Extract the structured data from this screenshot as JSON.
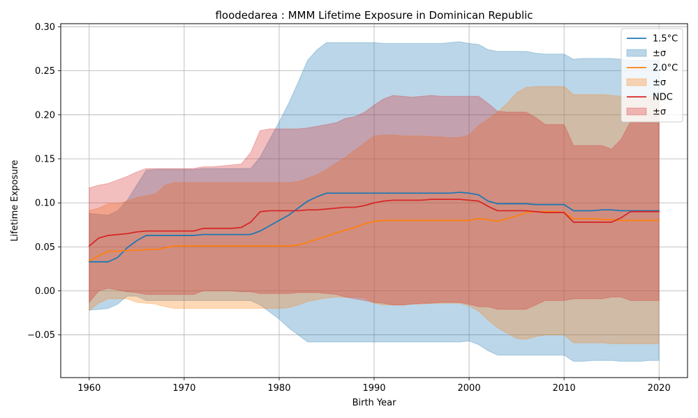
{
  "chart_data": {
    "type": "line",
    "title": "floodedarea : MMM Lifetime Exposure in Dominican Republic",
    "xlabel": "Birth Year",
    "ylabel": "Lifetime Exposure",
    "xlim": [
      1957,
      2023
    ],
    "ylim": [
      -0.0985,
      0.3035
    ],
    "xticks": [
      1960,
      1970,
      1980,
      1990,
      2000,
      2010,
      2020
    ],
    "yticks": [
      -0.05,
      0.0,
      0.05,
      0.1,
      0.15,
      0.2,
      0.25,
      0.3
    ],
    "ytick_labels": [
      "−0.05",
      "0.00",
      "0.05",
      "0.10",
      "0.15",
      "0.20",
      "0.25",
      "0.30"
    ],
    "grid": true,
    "legend_position": "top-right",
    "x": [
      1960,
      1961,
      1962,
      1963,
      1964,
      1965,
      1966,
      1967,
      1968,
      1969,
      1970,
      1971,
      1972,
      1973,
      1974,
      1975,
      1976,
      1977,
      1978,
      1979,
      1980,
      1981,
      1982,
      1983,
      1984,
      1985,
      1986,
      1987,
      1988,
      1989,
      1990,
      1991,
      1992,
      1993,
      1994,
      1995,
      1996,
      1997,
      1998,
      1999,
      2000,
      2001,
      2002,
      2003,
      2004,
      2005,
      2006,
      2007,
      2008,
      2009,
      2010,
      2011,
      2012,
      2013,
      2014,
      2015,
      2016,
      2017,
      2018,
      2019,
      2020
    ],
    "series": [
      {
        "name": "1.5°C",
        "band_label": "±σ",
        "color": "#1f77b4",
        "mean": [
          0.033,
          0.033,
          0.033,
          0.038,
          0.049,
          0.057,
          0.063,
          0.063,
          0.063,
          0.063,
          0.063,
          0.063,
          0.064,
          0.064,
          0.064,
          0.064,
          0.064,
          0.064,
          0.068,
          0.074,
          0.08,
          0.086,
          0.094,
          0.102,
          0.107,
          0.111,
          0.111,
          0.111,
          0.111,
          0.111,
          0.111,
          0.111,
          0.111,
          0.111,
          0.111,
          0.111,
          0.111,
          0.111,
          0.111,
          0.112,
          0.111,
          0.109,
          0.102,
          0.099,
          0.099,
          0.099,
          0.099,
          0.098,
          0.098,
          0.098,
          0.098,
          0.091,
          0.091,
          0.091,
          0.092,
          0.092,
          0.091,
          0.091,
          0.091,
          0.091,
          0.091
        ],
        "upper": [
          0.088,
          0.087,
          0.086,
          0.091,
          0.103,
          0.12,
          0.137,
          0.138,
          0.138,
          0.138,
          0.138,
          0.138,
          0.139,
          0.139,
          0.139,
          0.139,
          0.139,
          0.139,
          0.152,
          0.172,
          0.192,
          0.213,
          0.237,
          0.262,
          0.274,
          0.282,
          0.282,
          0.282,
          0.282,
          0.282,
          0.282,
          0.281,
          0.281,
          0.281,
          0.281,
          0.281,
          0.281,
          0.281,
          0.282,
          0.283,
          0.281,
          0.28,
          0.274,
          0.272,
          0.272,
          0.272,
          0.272,
          0.27,
          0.269,
          0.269,
          0.269,
          0.263,
          0.264,
          0.264,
          0.264,
          0.264,
          0.263,
          0.262,
          0.262,
          0.262,
          0.262
        ],
        "lower": [
          -0.022,
          -0.021,
          -0.02,
          -0.015,
          -0.006,
          -0.006,
          -0.011,
          -0.011,
          -0.011,
          -0.011,
          -0.011,
          -0.011,
          -0.011,
          -0.011,
          -0.011,
          -0.011,
          -0.011,
          -0.011,
          -0.016,
          -0.024,
          -0.032,
          -0.042,
          -0.05,
          -0.058,
          -0.058,
          -0.058,
          -0.058,
          -0.058,
          -0.058,
          -0.058,
          -0.058,
          -0.058,
          -0.058,
          -0.058,
          -0.058,
          -0.058,
          -0.058,
          -0.058,
          -0.058,
          -0.058,
          -0.057,
          -0.061,
          -0.068,
          -0.073,
          -0.073,
          -0.073,
          -0.073,
          -0.073,
          -0.073,
          -0.073,
          -0.073,
          -0.08,
          -0.08,
          -0.079,
          -0.079,
          -0.079,
          -0.08,
          -0.08,
          -0.08,
          -0.079,
          -0.079
        ]
      },
      {
        "name": "2.0°C",
        "band_label": "±σ",
        "color": "#ff7f0e",
        "mean": [
          0.034,
          0.04,
          0.045,
          0.045,
          0.046,
          0.046,
          0.047,
          0.047,
          0.049,
          0.051,
          0.051,
          0.051,
          0.051,
          0.051,
          0.051,
          0.051,
          0.051,
          0.051,
          0.051,
          0.051,
          0.051,
          0.051,
          0.052,
          0.055,
          0.059,
          0.062,
          0.066,
          0.069,
          0.072,
          0.076,
          0.079,
          0.08,
          0.08,
          0.08,
          0.08,
          0.08,
          0.08,
          0.08,
          0.08,
          0.08,
          0.08,
          0.082,
          0.081,
          0.079,
          0.082,
          0.085,
          0.089,
          0.09,
          0.09,
          0.09,
          0.089,
          0.082,
          0.082,
          0.082,
          0.081,
          0.081,
          0.08,
          0.08,
          0.08,
          0.08,
          0.08
        ],
        "upper": [
          0.091,
          0.094,
          0.099,
          0.099,
          0.102,
          0.106,
          0.108,
          0.11,
          0.12,
          0.123,
          0.123,
          0.123,
          0.123,
          0.123,
          0.123,
          0.123,
          0.123,
          0.123,
          0.123,
          0.123,
          0.123,
          0.123,
          0.124,
          0.128,
          0.132,
          0.138,
          0.145,
          0.152,
          0.16,
          0.168,
          0.176,
          0.177,
          0.177,
          0.176,
          0.176,
          0.176,
          0.175,
          0.175,
          0.174,
          0.174,
          0.177,
          0.188,
          0.195,
          0.203,
          0.213,
          0.225,
          0.231,
          0.232,
          0.232,
          0.232,
          0.232,
          0.223,
          0.223,
          0.223,
          0.223,
          0.222,
          0.221,
          0.221,
          0.221,
          0.221,
          0.221
        ],
        "lower": [
          -0.022,
          -0.014,
          -0.009,
          -0.009,
          -0.009,
          -0.013,
          -0.014,
          -0.015,
          -0.018,
          -0.02,
          -0.02,
          -0.02,
          -0.02,
          -0.02,
          -0.02,
          -0.02,
          -0.02,
          -0.02,
          -0.02,
          -0.02,
          -0.02,
          -0.019,
          -0.016,
          -0.012,
          -0.01,
          -0.008,
          -0.007,
          -0.007,
          -0.007,
          -0.008,
          -0.014,
          -0.016,
          -0.016,
          -0.016,
          -0.015,
          -0.015,
          -0.014,
          -0.014,
          -0.014,
          -0.014,
          -0.017,
          -0.023,
          -0.033,
          -0.042,
          -0.048,
          -0.054,
          -0.055,
          -0.052,
          -0.05,
          -0.05,
          -0.05,
          -0.059,
          -0.059,
          -0.059,
          -0.059,
          -0.06,
          -0.06,
          -0.06,
          -0.06,
          -0.06,
          -0.06
        ]
      },
      {
        "name": "NDC",
        "band_label": "±σ",
        "color": "#d62728",
        "mean": [
          0.051,
          0.06,
          0.063,
          0.064,
          0.065,
          0.067,
          0.068,
          0.068,
          0.068,
          0.068,
          0.068,
          0.068,
          0.071,
          0.071,
          0.071,
          0.071,
          0.072,
          0.078,
          0.09,
          0.091,
          0.091,
          0.091,
          0.091,
          0.092,
          0.092,
          0.093,
          0.094,
          0.095,
          0.095,
          0.097,
          0.1,
          0.102,
          0.103,
          0.103,
          0.103,
          0.103,
          0.104,
          0.104,
          0.104,
          0.104,
          0.103,
          0.102,
          0.096,
          0.091,
          0.091,
          0.091,
          0.091,
          0.09,
          0.089,
          0.089,
          0.089,
          0.078,
          0.078,
          0.078,
          0.078,
          0.078,
          0.083,
          0.09,
          0.09,
          0.09,
          0.09
        ],
        "upper": [
          0.117,
          0.12,
          0.122,
          0.126,
          0.13,
          0.135,
          0.139,
          0.139,
          0.139,
          0.139,
          0.139,
          0.139,
          0.141,
          0.141,
          0.142,
          0.143,
          0.144,
          0.157,
          0.182,
          0.184,
          0.184,
          0.184,
          0.184,
          0.185,
          0.187,
          0.189,
          0.191,
          0.196,
          0.198,
          0.203,
          0.211,
          0.218,
          0.222,
          0.221,
          0.22,
          0.221,
          0.222,
          0.221,
          0.221,
          0.221,
          0.221,
          0.221,
          0.213,
          0.204,
          0.203,
          0.203,
          0.203,
          0.197,
          0.189,
          0.189,
          0.189,
          0.165,
          0.165,
          0.165,
          0.165,
          0.161,
          0.172,
          0.192,
          0.191,
          0.191,
          0.191
        ],
        "lower": [
          -0.013,
          0.0,
          0.003,
          0.001,
          -0.001,
          -0.002,
          -0.004,
          -0.004,
          -0.004,
          -0.004,
          -0.004,
          -0.004,
          0.0,
          0.0,
          0.0,
          0.0,
          -0.001,
          -0.001,
          -0.003,
          -0.003,
          -0.003,
          -0.003,
          -0.002,
          -0.002,
          -0.002,
          -0.003,
          -0.004,
          -0.007,
          -0.009,
          -0.011,
          -0.013,
          -0.014,
          -0.016,
          -0.016,
          -0.015,
          -0.014,
          -0.014,
          -0.013,
          -0.013,
          -0.013,
          -0.015,
          -0.018,
          -0.018,
          -0.021,
          -0.021,
          -0.021,
          -0.021,
          -0.016,
          -0.011,
          -0.011,
          -0.011,
          -0.009,
          -0.009,
          -0.009,
          -0.009,
          -0.007,
          -0.007,
          -0.011,
          -0.011,
          -0.011,
          -0.011
        ]
      }
    ]
  }
}
